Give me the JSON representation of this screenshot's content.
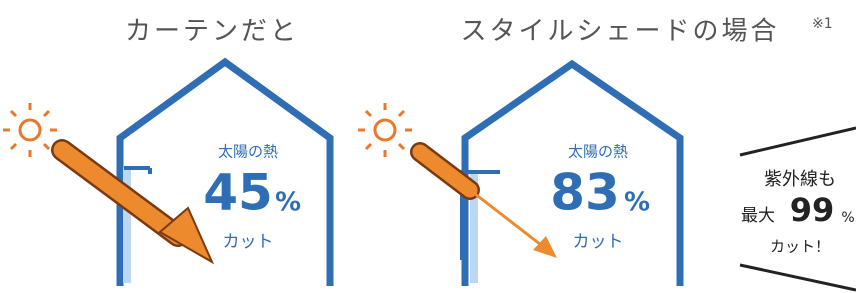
{
  "panels": [
    {
      "title": "カーテンだと",
      "label": "太陽の熱",
      "value": 45,
      "unit": "%",
      "caption": "カット"
    },
    {
      "title": "スタイルシェードの場合",
      "note": "※1",
      "label": "太陽の熱",
      "value": 83,
      "unit": "%",
      "caption": "カット"
    }
  ],
  "badge": {
    "line1": "紫外線も",
    "prefix": "最大",
    "value": 99,
    "unit": "%",
    "caption": "カット！"
  }
}
